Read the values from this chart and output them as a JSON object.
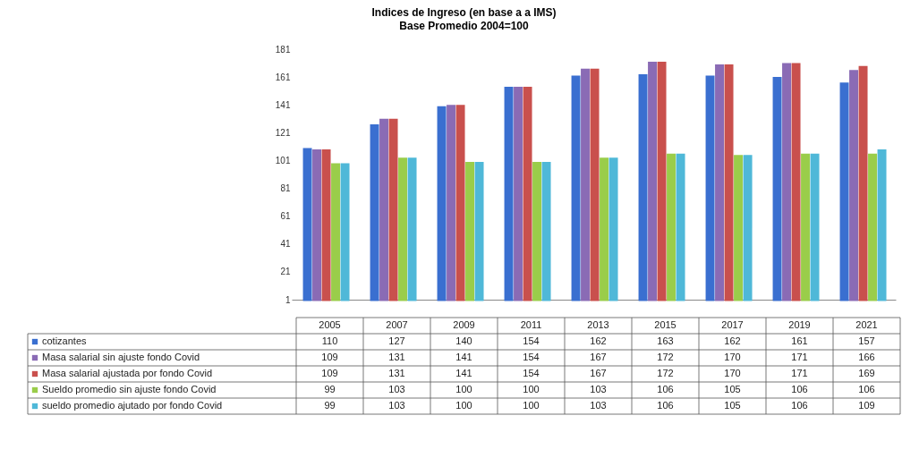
{
  "chart_data": {
    "type": "bar",
    "title": "Indices de Ingreso (en base a a IMS)",
    "subtitle": "Base  Promedio  2004=100",
    "categories": [
      "2005",
      "2007",
      "2009",
      "2011",
      "2013",
      "2015",
      "2017",
      "2019",
      "2021"
    ],
    "series": [
      {
        "name": "cotizantes",
        "color": "#3a6fd0",
        "values": [
          110,
          127,
          140,
          154,
          162,
          163,
          162,
          161,
          157
        ]
      },
      {
        "name": "Masa salarial sin ajuste fondo Covid",
        "color": "#8a6bb5",
        "values": [
          109,
          131,
          141,
          154,
          167,
          172,
          170,
          171,
          166
        ]
      },
      {
        "name": "Masa salarial ajustada por fondo Covid",
        "color": "#c9504d",
        "values": [
          109,
          131,
          141,
          154,
          167,
          172,
          170,
          171,
          169
        ]
      },
      {
        "name": "Sueldo promedio sin ajuste fondo Covid",
        "color": "#9acd4a",
        "values": [
          99,
          103,
          100,
          100,
          103,
          106,
          105,
          106,
          106
        ]
      },
      {
        "name": "sueldo promedio ajutado por fondo Covid",
        "color": "#4fb8d8",
        "values": [
          99,
          103,
          100,
          100,
          103,
          106,
          105,
          106,
          109
        ]
      }
    ],
    "ylim": [
      1,
      181
    ],
    "yticks": [
      1,
      21,
      41,
      61,
      81,
      101,
      121,
      141,
      161,
      181
    ],
    "grid": false,
    "legend": "bottom",
    "data_labels": true
  }
}
